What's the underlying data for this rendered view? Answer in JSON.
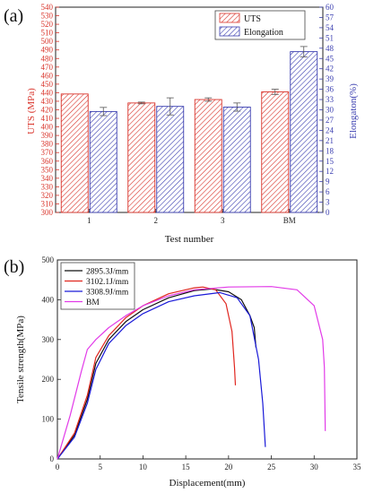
{
  "chart_data": [
    {
      "panel": "(a)",
      "type": "bar",
      "categories": [
        "1",
        "2",
        "3",
        "BM"
      ],
      "xlabel": "Test number",
      "ylabel": "UTS (MPa)",
      "y2label": "Elongaton(%)",
      "ylim": [
        300,
        540
      ],
      "y2lim": [
        0,
        60
      ],
      "yticks": [
        300,
        310,
        320,
        330,
        340,
        350,
        360,
        370,
        380,
        390,
        400,
        410,
        420,
        430,
        440,
        450,
        460,
        470,
        480,
        490,
        500,
        510,
        520,
        530,
        540
      ],
      "y2ticks": [
        0,
        3,
        6,
        9,
        12,
        15,
        18,
        21,
        24,
        27,
        30,
        33,
        36,
        39,
        42,
        45,
        48,
        51,
        54,
        57,
        60
      ],
      "legend_position": "top-right",
      "series": [
        {
          "name": "UTS",
          "axis": "left",
          "color": "#d9342b",
          "hatch": "red-diagonal",
          "values": [
            438.5,
            428,
            432,
            441
          ],
          "errors": [
            0,
            1,
            2,
            3
          ]
        },
        {
          "name": "Elongation",
          "axis": "right",
          "color": "#3b3fb0",
          "hatch": "blue-diagonal",
          "values": [
            29.5,
            31,
            30.8,
            47
          ],
          "errors": [
            1.2,
            2.5,
            1.2,
            1.5
          ]
        }
      ]
    },
    {
      "panel": "(b)",
      "type": "line",
      "xlabel": "Displacement(mm)",
      "ylabel": "Tensile strength(MPa)",
      "xlim": [
        0,
        35
      ],
      "ylim": [
        0,
        500
      ],
      "xticks": [
        0,
        5,
        10,
        15,
        20,
        25,
        30,
        35
      ],
      "yticks": [
        0,
        100,
        200,
        300,
        400,
        500
      ],
      "legend_position": "top-left",
      "series": [
        {
          "name": "2895.3J/mm",
          "color": "#111111",
          "x": [
            0,
            2,
            3.5,
            4.5,
            6,
            8,
            10,
            13,
            16,
            18,
            20,
            21.5,
            22.5,
            23,
            23.2
          ],
          "y": [
            0,
            60,
            150,
            240,
            300,
            345,
            375,
            405,
            423,
            427,
            420,
            400,
            360,
            330,
            280
          ]
        },
        {
          "name": "3102.1J/mm",
          "color": "#e0261f",
          "x": [
            0,
            2,
            3.5,
            4.5,
            6,
            8,
            10,
            13,
            16,
            17,
            18.5,
            19.7,
            20.4,
            20.7,
            20.8
          ],
          "y": [
            0,
            65,
            160,
            255,
            310,
            355,
            385,
            415,
            430,
            432,
            425,
            390,
            320,
            230,
            185
          ]
        },
        {
          "name": "3308.9J/mm",
          "color": "#1a1ad8",
          "x": [
            0,
            2,
            3.5,
            4.5,
            6,
            8,
            10,
            13,
            16,
            19,
            21,
            22.5,
            23.5,
            24,
            24.3
          ],
          "y": [
            0,
            55,
            140,
            225,
            290,
            335,
            365,
            395,
            410,
            418,
            405,
            360,
            250,
            140,
            30
          ]
        },
        {
          "name": "BM",
          "color": "#e23be8",
          "x": [
            0,
            1.5,
            2.8,
            3.5,
            4.5,
            6,
            8,
            10,
            13,
            16,
            20,
            25,
            28,
            30,
            31,
            31.2,
            31.3
          ],
          "y": [
            0,
            110,
            220,
            275,
            300,
            330,
            360,
            385,
            410,
            425,
            432,
            433,
            425,
            385,
            300,
            230,
            70
          ]
        }
      ]
    }
  ]
}
